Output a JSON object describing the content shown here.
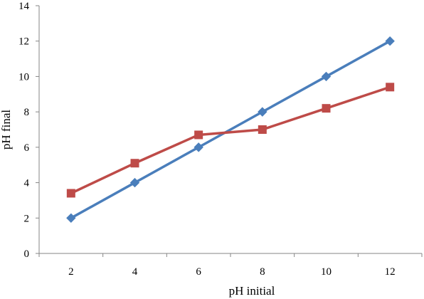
{
  "chart_data": {
    "type": "line",
    "xlabel": "pH initial",
    "ylabel": "pH final",
    "xlim": [
      1,
      13
    ],
    "ylim": [
      0,
      14
    ],
    "x_ticks": [
      2,
      4,
      6,
      8,
      10,
      12
    ],
    "y_ticks": [
      0,
      2,
      4,
      6,
      8,
      10,
      12,
      14
    ],
    "grid": false,
    "legend": "none",
    "series": [
      {
        "x": [
          2,
          4,
          6,
          8,
          10,
          12
        ],
        "values": [
          2,
          4,
          6,
          8,
          10,
          12
        ],
        "color": "#4a7ebb",
        "marker": "diamond"
      },
      {
        "x": [
          2,
          4,
          6,
          8,
          10,
          12
        ],
        "values": [
          3.4,
          5.1,
          6.7,
          7.0,
          8.2,
          9.4
        ],
        "color": "#be4b48",
        "marker": "square"
      }
    ]
  }
}
